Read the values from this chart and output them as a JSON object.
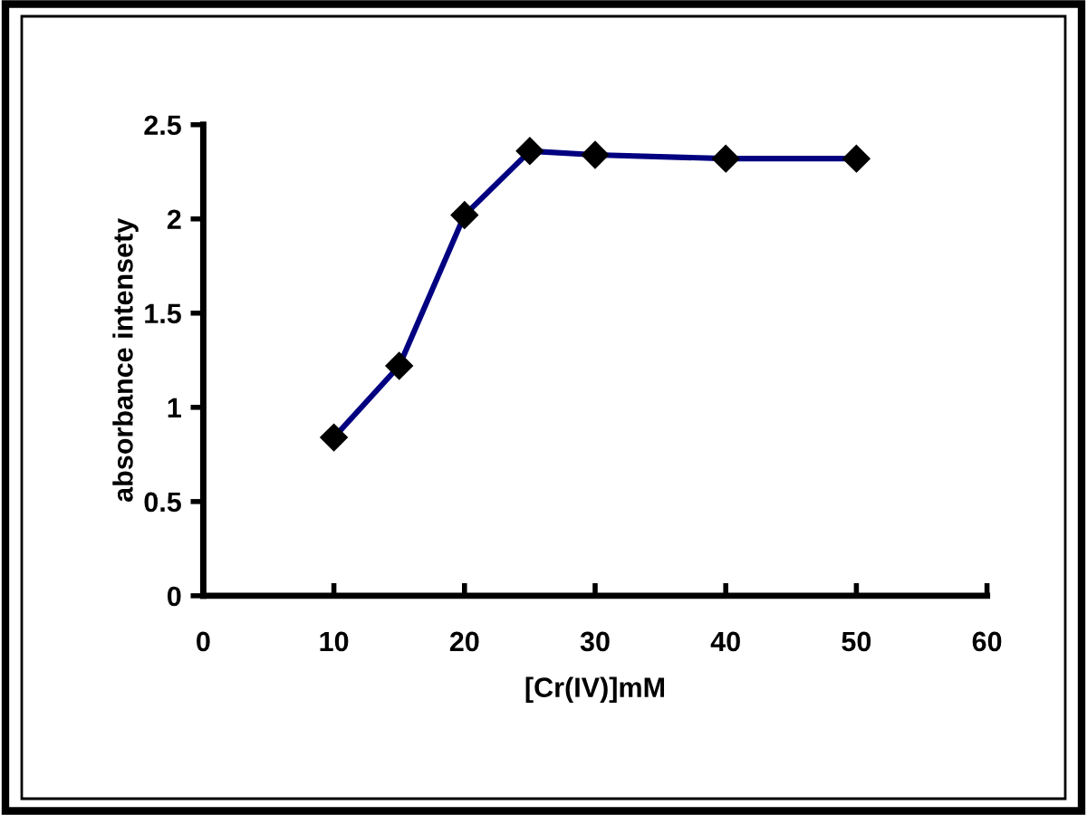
{
  "chart_data": {
    "type": "line",
    "xlabel": "[Cr(IV)]mM",
    "ylabel": "absorbance intensety",
    "x": [
      10,
      15,
      20,
      25,
      30,
      40,
      50
    ],
    "series": [
      {
        "color": "#000080",
        "values": [
          0.84,
          1.22,
          2.02,
          2.36,
          2.34,
          2.32,
          2.32
        ]
      }
    ],
    "xlim": [
      0,
      60
    ],
    "xticks": [
      0,
      10,
      20,
      30,
      40,
      50,
      60
    ],
    "ylim": [
      0,
      2.5
    ],
    "yticks": [
      0,
      0.5,
      1,
      1.5,
      2,
      2.5
    ],
    "marker": "diamond",
    "line_style": "solid",
    "grid": false,
    "legend": false
  }
}
